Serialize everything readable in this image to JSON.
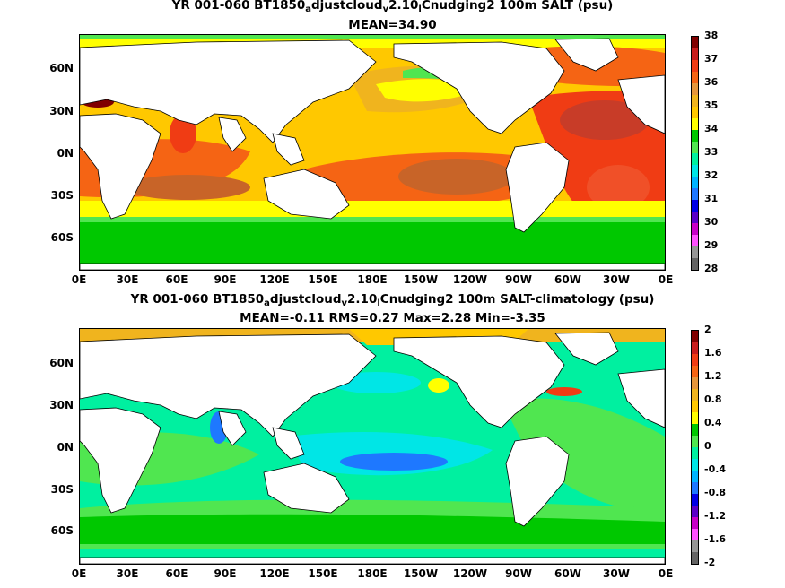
{
  "top": {
    "title_line1": {
      "pre": "YR 001-060 BT1850",
      "sub1": "a",
      "mid": "djustcloud",
      "sub2": "v",
      "mid2": "2.10",
      "sub3": "l",
      "post": "Cnudging2 100m SALT (psu)"
    },
    "title_line2": "MEAN=34.90",
    "colorbar": {
      "labels": [
        "38",
        "37",
        "36",
        "35",
        "34",
        "33",
        "32",
        "31",
        "30",
        "29",
        "28"
      ],
      "colors": [
        "#800000",
        "#c81c1c",
        "#f03c14",
        "#f56414",
        "#e6963c",
        "#f0b41e",
        "#ffc800",
        "#ffff00",
        "#00c800",
        "#50e650",
        "#00f0a0",
        "#00e6e6",
        "#00b4ff",
        "#1e78ff",
        "#0000e6",
        "#5a00c8",
        "#c800c8",
        "#ff50ff",
        "#969696",
        "#646464"
      ]
    }
  },
  "bottom": {
    "title_line1": {
      "pre": "YR 001-060 BT1850",
      "sub1": "a",
      "mid": "djustcloud",
      "sub2": "v",
      "mid2": "2.10",
      "sub3": "l",
      "post": "Cnudging2 100m SALT-climatology (psu)"
    },
    "title_line2": "MEAN=-0.11   RMS=0.27   Max=2.28   Min=-3.35",
    "colorbar": {
      "labels": [
        "2",
        "1.6",
        "1.2",
        "0.8",
        "0.4",
        "0",
        "-0.4",
        "-0.8",
        "-1.2",
        "-1.6",
        "-2"
      ],
      "colors": [
        "#800000",
        "#c81c1c",
        "#f03c14",
        "#f56414",
        "#e6963c",
        "#f0b41e",
        "#ffc800",
        "#ffff00",
        "#00c800",
        "#50e650",
        "#00f0a0",
        "#00e6e6",
        "#00b4ff",
        "#1e78ff",
        "#0000e6",
        "#5a00c8",
        "#c800c8",
        "#ff50ff",
        "#969696",
        "#646464"
      ]
    }
  },
  "lat_labels": [
    "60N",
    "30N",
    "0N",
    "30S",
    "60S"
  ],
  "lon_labels": [
    "0E",
    "30E",
    "60E",
    "90E",
    "120E",
    "150E",
    "180E",
    "150W",
    "120W",
    "90W",
    "60W",
    "30W",
    "0E"
  ]
}
